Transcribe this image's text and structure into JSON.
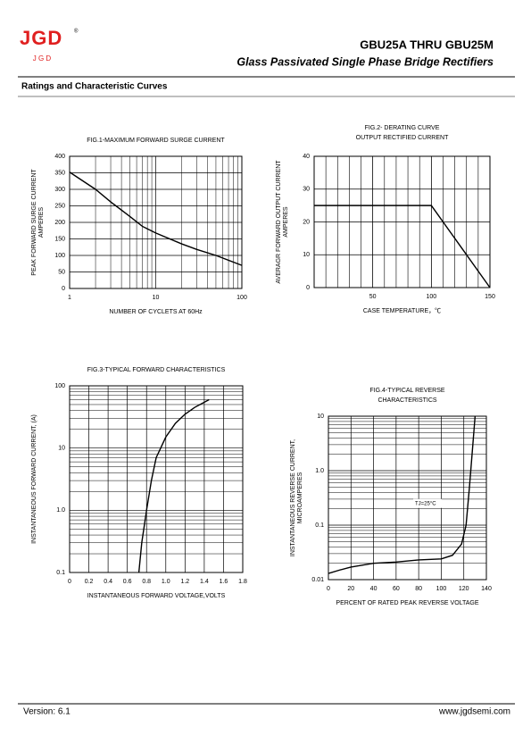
{
  "header": {
    "logo": "JGD",
    "logo_mark": "®",
    "logo_sub": "J G D",
    "title": "GBU25A THRU GBU25M",
    "subtitle": "Glass Passivated Single Phase Bridge Rectifiers"
  },
  "section": "Ratings and Characteristic Curves",
  "chart_data": [
    {
      "type": "line",
      "title": [
        "FIG.1-MAXIMUM FORWARD SURGE CURRENT"
      ],
      "y_label": [
        "PEAK FORWARD SURGE CURRENT",
        "AMPERES"
      ],
      "x_label": "NUMBER OF CYCLETS AT 60Hz",
      "xscale": "log",
      "xlim": [
        1,
        100
      ],
      "xticks": [
        1,
        10,
        100
      ],
      "ylim": [
        0,
        400
      ],
      "yticks": [
        0,
        50,
        100,
        150,
        200,
        250,
        300,
        350,
        400
      ],
      "grid": true,
      "color": "#000000",
      "x": [
        1,
        2,
        3,
        5,
        7,
        10,
        20,
        30,
        50,
        100
      ],
      "values": [
        352,
        300,
        262,
        218,
        188,
        168,
        135,
        118,
        100,
        70
      ]
    },
    {
      "type": "line",
      "title": [
        "FIG.2- DERATING CURVE",
        "OUTPUT RECTIFIED CURRENT"
      ],
      "y_label": [
        "AVERAGR  FORWARD  OUTPUT CURRENT",
        "AMPERES"
      ],
      "x_label": "CASE TEMPERATURE，℃",
      "xlim": [
        0,
        150
      ],
      "xticks": [
        50,
        100,
        150
      ],
      "xgrid": [
        10,
        20,
        30,
        40,
        50,
        60,
        70,
        80,
        90,
        100,
        110,
        120,
        130,
        140
      ],
      "ylim": [
        0,
        40
      ],
      "yticks": [
        0,
        10,
        20,
        30,
        40
      ],
      "grid": true,
      "color": "#000000",
      "x": [
        0,
        100,
        150
      ],
      "values": [
        25,
        25,
        0
      ]
    },
    {
      "type": "line",
      "title": [
        "FIG.3-TYPICAL FORWARD CHARACTERISTICS"
      ],
      "y_label": [
        "INSTANTANEOUS FORWARD CURRENT, (A)"
      ],
      "x_label": "INSTANTANEOUS FORWARD VOLTAGE,VOLTS",
      "xlim": [
        0,
        1.8
      ],
      "xticks": [
        0,
        0.2,
        0.4,
        0.6,
        0.8,
        {
          "value": 1,
          "label": "1.0"
        },
        1.2,
        1.4,
        1.6,
        1.8
      ],
      "yscale": "log",
      "ylim": [
        0.1,
        100
      ],
      "yticks": [
        0.1,
        {
          "value": 1,
          "label": "1.0"
        },
        10,
        100
      ],
      "grid": true,
      "color": "#000000",
      "x": [
        0.72,
        0.75,
        0.8,
        0.85,
        0.9,
        1.0,
        1.1,
        1.2,
        1.3,
        1.45
      ],
      "values": [
        0.1,
        0.3,
        1,
        3,
        7,
        15,
        25,
        35,
        45,
        60
      ]
    },
    {
      "type": "line",
      "title": [
        "FIG.4-TYPICAL REVERSE",
        "CHARACTERISTICS"
      ],
      "y_label": [
        "INSTANTANEOUS  REVERSE  CURRENT,",
        "MICROAMPERES"
      ],
      "x_label": "PERCENT OF RATED PEAK REVERSE VOLTAGE",
      "annotation": "TJ=25°C",
      "xlim": [
        0,
        140
      ],
      "xticks": [
        0,
        20,
        40,
        60,
        80,
        100,
        120,
        140
      ],
      "yscale": "log",
      "ylim": [
        0.01,
        10
      ],
      "yticks": [
        0.01,
        0.1,
        {
          "value": 1,
          "label": "1.0"
        },
        10
      ],
      "grid": true,
      "color": "#000000",
      "x": [
        0,
        10,
        20,
        40,
        60,
        80,
        100,
        110,
        118,
        122,
        125,
        128,
        130
      ],
      "values": [
        0.013,
        0.015,
        0.017,
        0.02,
        0.021,
        0.023,
        0.024,
        0.028,
        0.045,
        0.1,
        0.5,
        3,
        10
      ]
    }
  ],
  "footer": {
    "version": "Version: 6.1",
    "url": "www.jgdsemi.com"
  }
}
